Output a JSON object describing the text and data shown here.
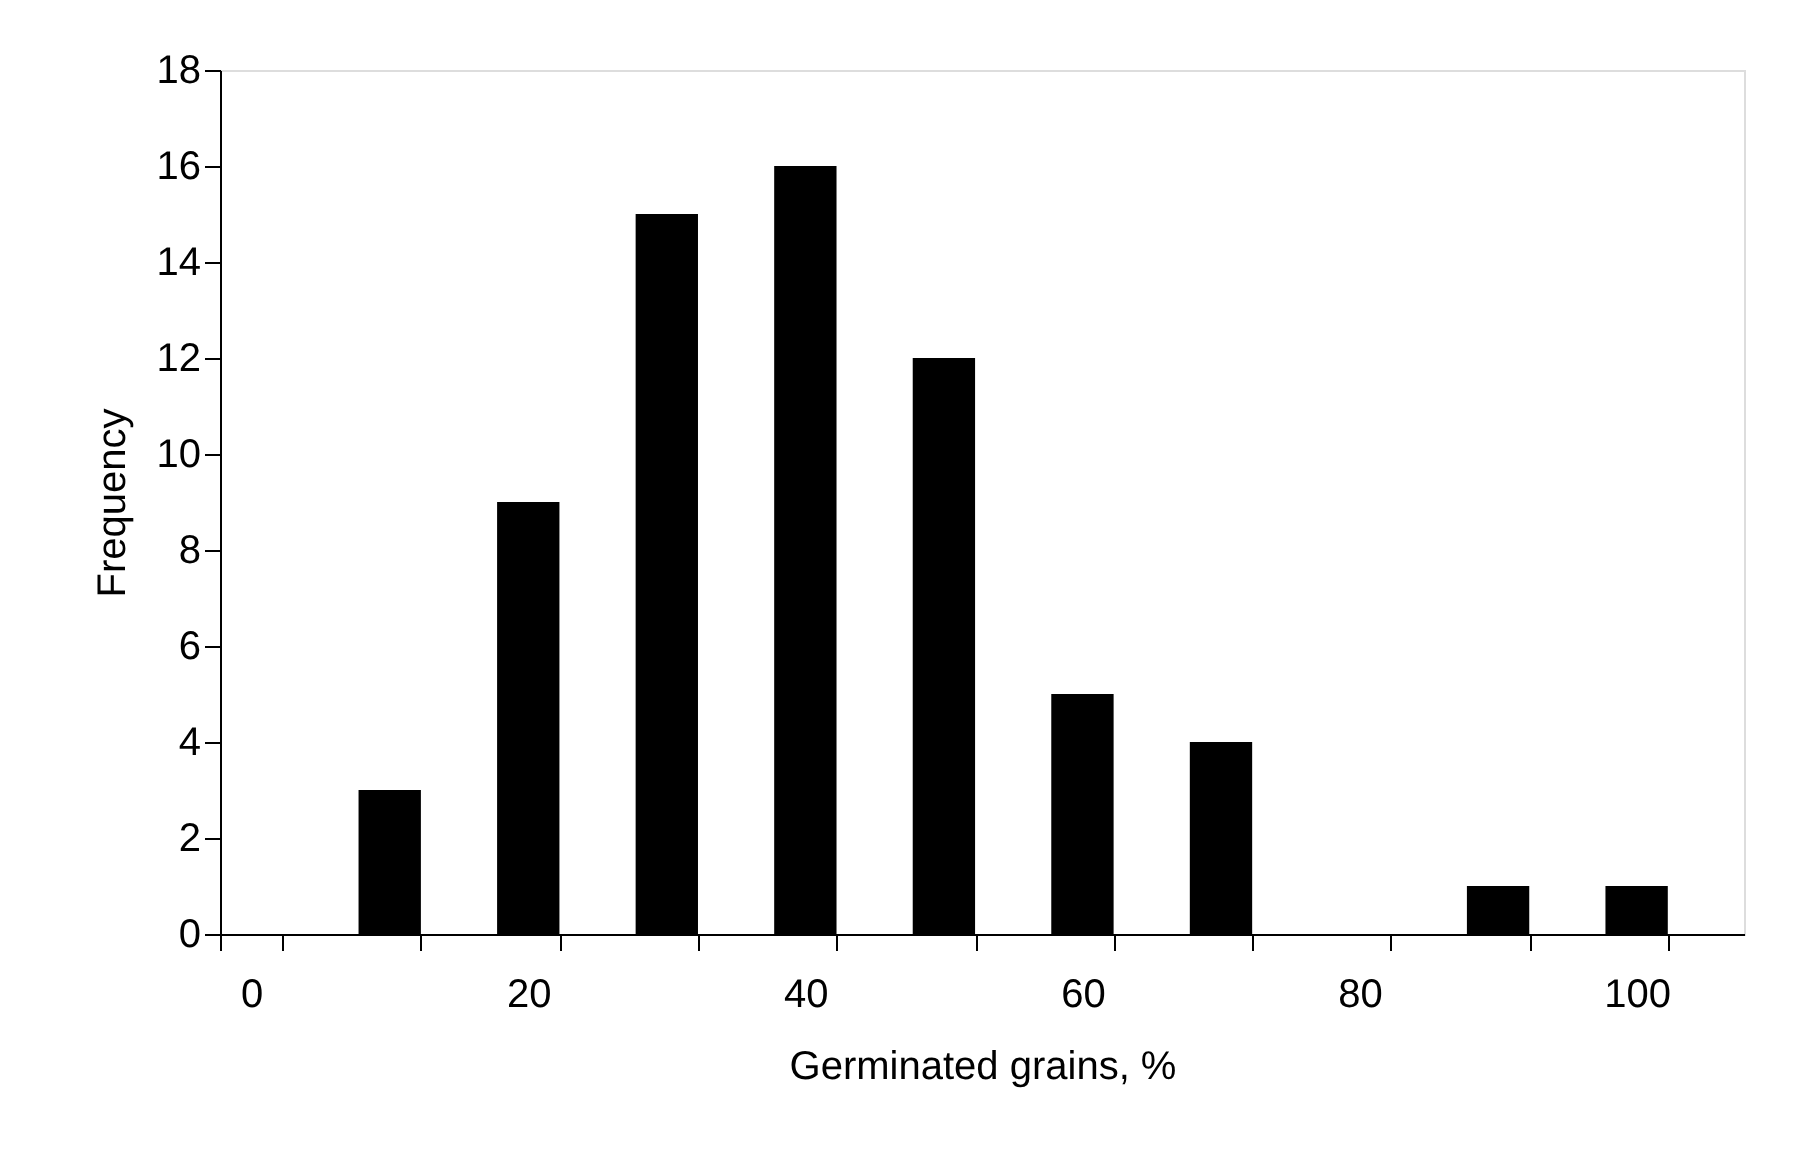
{
  "chart_data": {
    "type": "bar",
    "xlabel": "Germinated grains, %",
    "ylabel": "Frequency",
    "categories": [
      "0",
      null,
      "20",
      null,
      "40",
      null,
      "60",
      null,
      "80",
      null,
      "100"
    ],
    "values": [
      0,
      3,
      9,
      15,
      16,
      12,
      5,
      4,
      0,
      1,
      1
    ],
    "color": "#000000",
    "ylim": [
      0,
      18
    ],
    "yticks": [
      0,
      2,
      4,
      6,
      8,
      10,
      12,
      14,
      16,
      18
    ],
    "grid": false
  }
}
